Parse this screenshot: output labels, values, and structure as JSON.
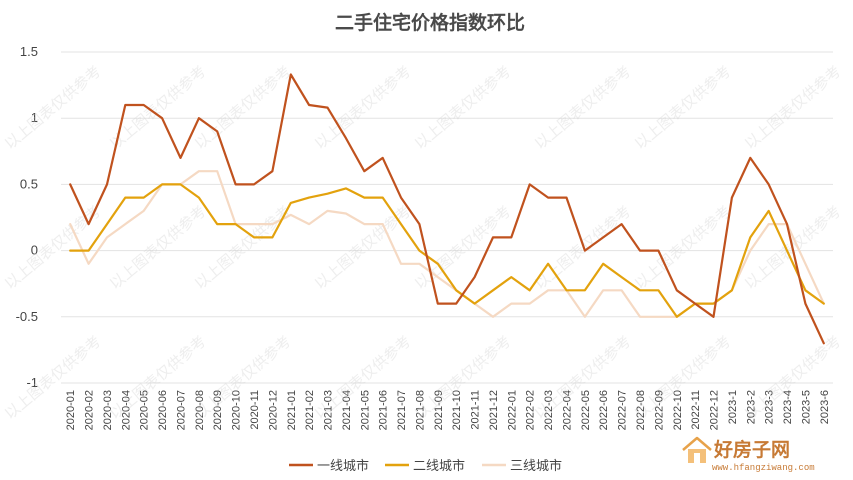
{
  "chart_data": {
    "type": "line",
    "title": "二手住宅价格指数环比",
    "categories": [
      "2020-01",
      "2020-02",
      "2020-03",
      "2020-04",
      "2020-05",
      "2020-06",
      "2020-07",
      "2020-08",
      "2020-09",
      "2020-10",
      "2020-11",
      "2020-12",
      "2021-01",
      "2021-02",
      "2021-03",
      "2021-04",
      "2021-05",
      "2021-06",
      "2021-07",
      "2021-08",
      "2021-09",
      "2021-10",
      "2021-11",
      "2021-12",
      "2022-01",
      "2022-02",
      "2022-03",
      "2022-04",
      "2022-05",
      "2022-06",
      "2022-07",
      "2022-08",
      "2022-09",
      "2022-10",
      "2022-11",
      "2022-12",
      "2023-1",
      "2023-2",
      "2023-3",
      "2023-4",
      "2023-5",
      "2023-6"
    ],
    "yticks": [
      "1.5",
      "1",
      "0.5",
      "0",
      "-0.5",
      "-1"
    ],
    "ylim": [
      -1,
      1.5
    ],
    "grid": true,
    "legend_position": "bottom",
    "series": [
      {
        "name": "一线城市",
        "color": "#c0521e",
        "values": [
          0.5,
          0.2,
          0.5,
          1.1,
          1.1,
          1.0,
          0.7,
          1.0,
          0.9,
          0.5,
          0.5,
          0.6,
          1.33,
          1.1,
          1.08,
          0.85,
          0.6,
          0.7,
          0.4,
          0.2,
          -0.4,
          -0.4,
          -0.2,
          0.1,
          0.1,
          0.5,
          0.4,
          0.4,
          0.0,
          0.1,
          0.2,
          0.0,
          0.0,
          -0.3,
          -0.4,
          -0.5,
          0.4,
          0.7,
          0.5,
          0.2,
          -0.4,
          -0.7
        ]
      },
      {
        "name": "二线城市",
        "color": "#e3a20d",
        "values": [
          0.0,
          0.0,
          0.2,
          0.4,
          0.4,
          0.5,
          0.5,
          0.4,
          0.2,
          0.2,
          0.1,
          0.1,
          0.36,
          0.4,
          0.43,
          0.47,
          0.4,
          0.4,
          0.2,
          0.0,
          -0.1,
          -0.3,
          -0.4,
          -0.3,
          -0.2,
          -0.3,
          -0.1,
          -0.3,
          -0.3,
          -0.1,
          -0.2,
          -0.3,
          -0.3,
          -0.5,
          -0.4,
          -0.4,
          -0.3,
          0.1,
          0.3,
          0.0,
          -0.3,
          -0.4
        ]
      },
      {
        "name": "三线城市",
        "color": "#f5d9c3",
        "values": [
          0.2,
          -0.1,
          0.1,
          0.2,
          0.3,
          0.5,
          0.5,
          0.6,
          0.6,
          0.2,
          0.2,
          0.2,
          0.27,
          0.2,
          0.3,
          0.28,
          0.2,
          0.2,
          -0.1,
          -0.1,
          -0.2,
          -0.3,
          -0.4,
          -0.5,
          -0.4,
          -0.4,
          -0.3,
          -0.3,
          -0.5,
          -0.3,
          -0.3,
          -0.5,
          -0.5,
          -0.5,
          -0.4,
          -0.4,
          -0.3,
          0.0,
          0.2,
          0.2,
          -0.1,
          -0.4
        ]
      }
    ]
  },
  "watermark": {
    "text": "以上图表仅供参考"
  },
  "logo": {
    "name": "好房子网",
    "url": "www.hfangziwang.com",
    "icon": "house-icon"
  }
}
